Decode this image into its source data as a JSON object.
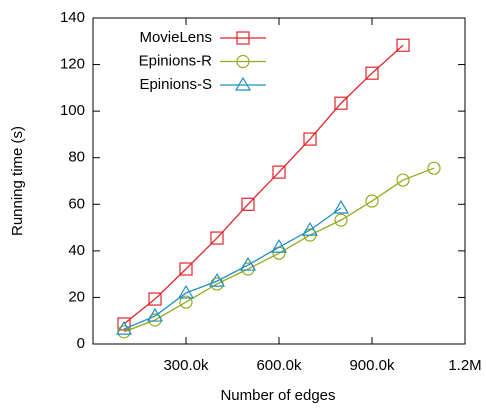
{
  "chart_data": {
    "type": "line",
    "x_label": "Number of edges",
    "y_label": "Running time (s)",
    "x": [
      100000,
      200000,
      300000,
      400000,
      500000,
      600000,
      700000,
      800000,
      900000,
      1000000,
      1100000
    ],
    "series": [
      {
        "name": "MovieLens",
        "color": "#e0262b",
        "marker": "square",
        "values": [
          8.6,
          19.3,
          32.2,
          45.5,
          60,
          73.8,
          88,
          103.4,
          116.3,
          128.3,
          null
        ]
      },
      {
        "name": "Epinions-R",
        "color": "#96aa1c",
        "marker": "circle",
        "values": [
          5.2,
          10.3,
          18,
          25.8,
          32.2,
          39,
          46.8,
          53.2,
          61.4,
          70.4,
          75.5
        ]
      },
      {
        "name": "Epinions-S",
        "color": "#1f8fc4",
        "marker": "triangle",
        "values": [
          6.4,
          12,
          21.9,
          27,
          33.9,
          41.6,
          48.9,
          58.4,
          null,
          null,
          null
        ]
      }
    ],
    "xlim": [
      0,
      1200000
    ],
    "xticks": [
      {
        "value": 300000,
        "label": "300.0k"
      },
      {
        "value": 600000,
        "label": "600.0k"
      },
      {
        "value": 900000,
        "label": "900.0k"
      },
      {
        "value": 1200000,
        "label": "1.2M"
      }
    ],
    "ylim": [
      0,
      140
    ],
    "yticks": [
      0,
      20,
      40,
      60,
      80,
      100,
      120,
      140
    ],
    "grid": false,
    "legend": "top-left"
  }
}
